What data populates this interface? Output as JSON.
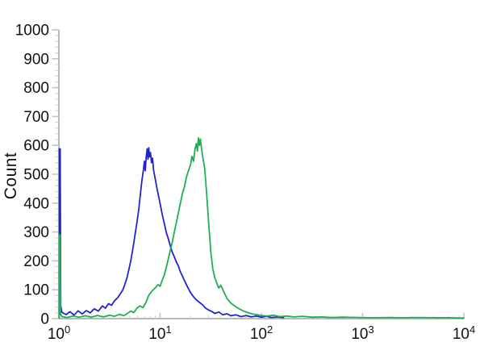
{
  "figure": {
    "background": "#ffffff"
  },
  "chart_data": {
    "type": "line",
    "subtype": "flow-cytometry-histogram-overlay",
    "title": "",
    "xlabel": "",
    "ylabel": "Count",
    "x_scale": "log10",
    "xlim_decades": [
      0,
      4
    ],
    "ylim": [
      0,
      1000
    ],
    "grid": false,
    "legend": null,
    "y_major_ticks": [
      0,
      100,
      200,
      300,
      400,
      500,
      600,
      700,
      800,
      900,
      1000
    ],
    "y_minor_tick_step": 20,
    "x_major_tick_labels": [
      {
        "base": "10",
        "exp": "0"
      },
      {
        "base": "10",
        "exp": "1"
      },
      {
        "base": "10",
        "exp": "2"
      },
      {
        "base": "10",
        "exp": "3"
      },
      {
        "base": "10",
        "exp": "4"
      }
    ],
    "colors": {
      "axis": "#b4bab5",
      "tick_major": "#c2c7c3",
      "tick_minor": "#d2d6d3",
      "label_text": "#111111",
      "series_blue": "#2323cf",
      "series_green": "#1fae55"
    },
    "series": [
      {
        "name": "series-blue",
        "color": "#2323cf",
        "peak_x_decade": 0.89,
        "peak_count": 592,
        "points": [
          [
            0.005,
            4
          ],
          [
            0.005,
            588
          ],
          [
            0.013,
            588
          ],
          [
            0.018,
            45
          ],
          [
            0.03,
            22
          ],
          [
            0.07,
            14
          ],
          [
            0.11,
            24
          ],
          [
            0.15,
            12
          ],
          [
            0.19,
            27
          ],
          [
            0.23,
            16
          ],
          [
            0.27,
            28
          ],
          [
            0.31,
            20
          ],
          [
            0.35,
            34
          ],
          [
            0.39,
            26
          ],
          [
            0.43,
            44
          ],
          [
            0.46,
            36
          ],
          [
            0.49,
            52
          ],
          [
            0.52,
            46
          ],
          [
            0.55,
            62
          ],
          [
            0.58,
            72
          ],
          [
            0.61,
            88
          ],
          [
            0.63,
            98
          ],
          [
            0.65,
            118
          ],
          [
            0.67,
            138
          ],
          [
            0.69,
            168
          ],
          [
            0.71,
            200
          ],
          [
            0.73,
            240
          ],
          [
            0.75,
            285
          ],
          [
            0.77,
            330
          ],
          [
            0.79,
            380
          ],
          [
            0.805,
            430
          ],
          [
            0.82,
            478
          ],
          [
            0.835,
            515
          ],
          [
            0.845,
            545
          ],
          [
            0.853,
            512
          ],
          [
            0.862,
            558
          ],
          [
            0.872,
            588
          ],
          [
            0.88,
            552
          ],
          [
            0.888,
            592
          ],
          [
            0.896,
            560
          ],
          [
            0.905,
            575
          ],
          [
            0.915,
            540
          ],
          [
            0.925,
            556
          ],
          [
            0.935,
            515
          ],
          [
            0.95,
            488
          ],
          [
            0.965,
            458
          ],
          [
            0.98,
            432
          ],
          [
            1.0,
            398
          ],
          [
            1.02,
            362
          ],
          [
            1.04,
            332
          ],
          [
            1.06,
            300
          ],
          [
            1.08,
            278
          ],
          [
            1.1,
            252
          ],
          [
            1.12,
            230
          ],
          [
            1.14,
            214
          ],
          [
            1.16,
            196
          ],
          [
            1.18,
            182
          ],
          [
            1.2,
            162
          ],
          [
            1.22,
            148
          ],
          [
            1.24,
            132
          ],
          [
            1.26,
            118
          ],
          [
            1.28,
            104
          ],
          [
            1.3,
            90
          ],
          [
            1.33,
            76
          ],
          [
            1.36,
            64
          ],
          [
            1.39,
            56
          ],
          [
            1.42,
            48
          ],
          [
            1.45,
            36
          ],
          [
            1.48,
            30
          ],
          [
            1.51,
            25
          ],
          [
            1.54,
            18
          ],
          [
            1.58,
            23
          ],
          [
            1.62,
            13
          ],
          [
            1.66,
            17
          ],
          [
            1.7,
            10
          ],
          [
            1.75,
            13
          ],
          [
            1.8,
            7
          ],
          [
            1.85,
            11
          ],
          [
            1.9,
            6
          ],
          [
            1.95,
            9
          ],
          [
            2.0,
            5
          ],
          [
            2.05,
            8
          ],
          [
            2.1,
            4
          ],
          [
            2.16,
            6
          ],
          [
            2.22,
            3
          ]
        ]
      },
      {
        "name": "series-green",
        "color": "#1fae55",
        "peak_x_decade": 1.38,
        "peak_count": 626,
        "points": [
          [
            0.005,
            2
          ],
          [
            0.005,
            290
          ],
          [
            0.013,
            290
          ],
          [
            0.018,
            14
          ],
          [
            0.03,
            7
          ],
          [
            0.08,
            4
          ],
          [
            0.14,
            9
          ],
          [
            0.2,
            5
          ],
          [
            0.26,
            10
          ],
          [
            0.32,
            5
          ],
          [
            0.38,
            11
          ],
          [
            0.44,
            6
          ],
          [
            0.5,
            12
          ],
          [
            0.55,
            8
          ],
          [
            0.6,
            15
          ],
          [
            0.64,
            10
          ],
          [
            0.68,
            19
          ],
          [
            0.71,
            26
          ],
          [
            0.74,
            21
          ],
          [
            0.77,
            36
          ],
          [
            0.8,
            44
          ],
          [
            0.83,
            38
          ],
          [
            0.86,
            56
          ],
          [
            0.89,
            82
          ],
          [
            0.92,
            96
          ],
          [
            0.95,
            106
          ],
          [
            0.98,
            118
          ],
          [
            1.0,
            112
          ],
          [
            1.02,
            132
          ],
          [
            1.04,
            150
          ],
          [
            1.06,
            176
          ],
          [
            1.08,
            206
          ],
          [
            1.1,
            236
          ],
          [
            1.12,
            266
          ],
          [
            1.14,
            300
          ],
          [
            1.16,
            332
          ],
          [
            1.18,
            366
          ],
          [
            1.2,
            400
          ],
          [
            1.22,
            432
          ],
          [
            1.24,
            456
          ],
          [
            1.26,
            490
          ],
          [
            1.28,
            512
          ],
          [
            1.3,
            532
          ],
          [
            1.315,
            562
          ],
          [
            1.33,
            545
          ],
          [
            1.345,
            588
          ],
          [
            1.358,
            606
          ],
          [
            1.368,
            580
          ],
          [
            1.378,
            626
          ],
          [
            1.388,
            600
          ],
          [
            1.398,
            622
          ],
          [
            1.408,
            592
          ],
          [
            1.42,
            562
          ],
          [
            1.44,
            522
          ],
          [
            1.46,
            432
          ],
          [
            1.48,
            330
          ],
          [
            1.5,
            232
          ],
          [
            1.52,
            172
          ],
          [
            1.54,
            142
          ],
          [
            1.56,
            122
          ],
          [
            1.58,
            106
          ],
          [
            1.6,
            116
          ],
          [
            1.63,
            92
          ],
          [
            1.66,
            70
          ],
          [
            1.7,
            53
          ],
          [
            1.74,
            43
          ],
          [
            1.78,
            34
          ],
          [
            1.82,
            27
          ],
          [
            1.86,
            22
          ],
          [
            1.9,
            17
          ],
          [
            1.95,
            14
          ],
          [
            2.0,
            11
          ],
          [
            2.06,
            9
          ],
          [
            2.12,
            12
          ],
          [
            2.18,
            7
          ],
          [
            2.25,
            9
          ],
          [
            2.32,
            6
          ],
          [
            2.4,
            8
          ],
          [
            2.5,
            5
          ],
          [
            2.6,
            6
          ],
          [
            2.7,
            4
          ],
          [
            2.8,
            5
          ],
          [
            2.95,
            4
          ],
          [
            3.1,
            3
          ],
          [
            3.25,
            4
          ],
          [
            3.4,
            3
          ],
          [
            3.55,
            4
          ],
          [
            3.7,
            3
          ],
          [
            3.85,
            3
          ],
          [
            4.0,
            2
          ]
        ]
      }
    ]
  }
}
